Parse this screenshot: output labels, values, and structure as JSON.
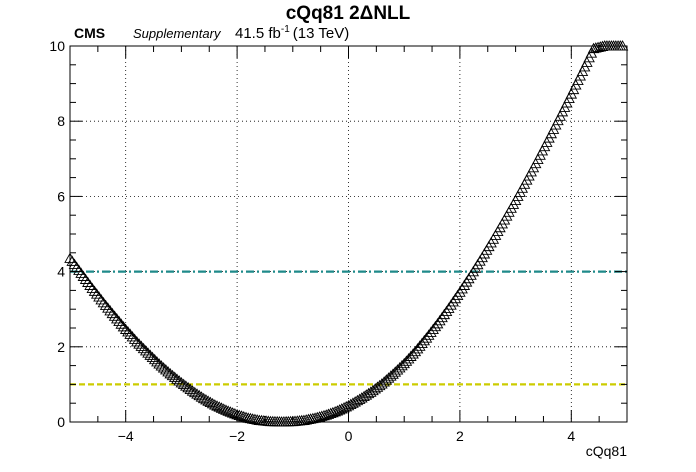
{
  "header": {
    "title": "cQq81 2ΔNLL",
    "experiment": "CMS",
    "status": "Supplementary",
    "lumi_value": "41.5 fb",
    "lumi_exp": "-1",
    "energy": "(13 TeV)"
  },
  "chart_data": {
    "type": "scatter",
    "title": "cQq81 2ΔNLL",
    "xlabel": "cQq81",
    "ylabel": "",
    "xlim": [
      -5,
      5
    ],
    "ylim": [
      0,
      10
    ],
    "grid": true,
    "marker": "open-triangle",
    "xticks": [
      -4,
      -2,
      0,
      2,
      4
    ],
    "yticks": [
      0,
      2,
      4,
      6,
      8,
      10
    ],
    "xtick_labels": [
      "−4",
      "−2",
      "0",
      "2",
      "4"
    ],
    "ytick_labels": [
      "0",
      "2",
      "4",
      "6",
      "8",
      "10"
    ],
    "series": [
      {
        "x": [
          -5.0,
          -4.8,
          -4.6,
          -4.4,
          -4.2,
          -4.0,
          -3.8,
          -3.6,
          -3.4,
          -3.2,
          -3.0,
          -2.8,
          -2.6,
          -2.4,
          -2.2,
          -2.0,
          -1.8,
          -1.6,
          -1.4,
          -1.2,
          -1.0,
          -0.8,
          -0.6,
          -0.4,
          -0.2,
          0.0,
          0.2,
          0.4,
          0.6,
          0.8,
          1.0,
          1.2,
          1.4,
          1.6,
          1.8,
          2.0,
          2.2,
          2.4,
          2.6,
          2.8,
          3.0,
          3.2,
          3.4,
          3.6,
          3.8,
          4.0,
          4.2,
          4.4,
          4.6,
          4.8,
          5.0
        ],
        "y": [
          4.35,
          3.95,
          3.55,
          3.17,
          2.81,
          2.46,
          2.13,
          1.83,
          1.54,
          1.28,
          1.04,
          0.82,
          0.62,
          0.45,
          0.31,
          0.19,
          0.1,
          0.04,
          0.01,
          0.0,
          0.01,
          0.04,
          0.1,
          0.18,
          0.29,
          0.43,
          0.6,
          0.79,
          1.01,
          1.27,
          1.55,
          1.87,
          2.23,
          2.61,
          3.02,
          3.45,
          3.9,
          4.37,
          4.86,
          5.37,
          5.89,
          6.43,
          6.98,
          7.55,
          8.13,
          8.72,
          9.32,
          9.93,
          10.0,
          10.0,
          10.0
        ]
      }
    ],
    "reference_lines": [
      {
        "y": 4,
        "color": "#1f8a8a",
        "style": "dash-dot"
      },
      {
        "y": 1,
        "color": "#cccc00",
        "style": "dashed"
      }
    ]
  }
}
